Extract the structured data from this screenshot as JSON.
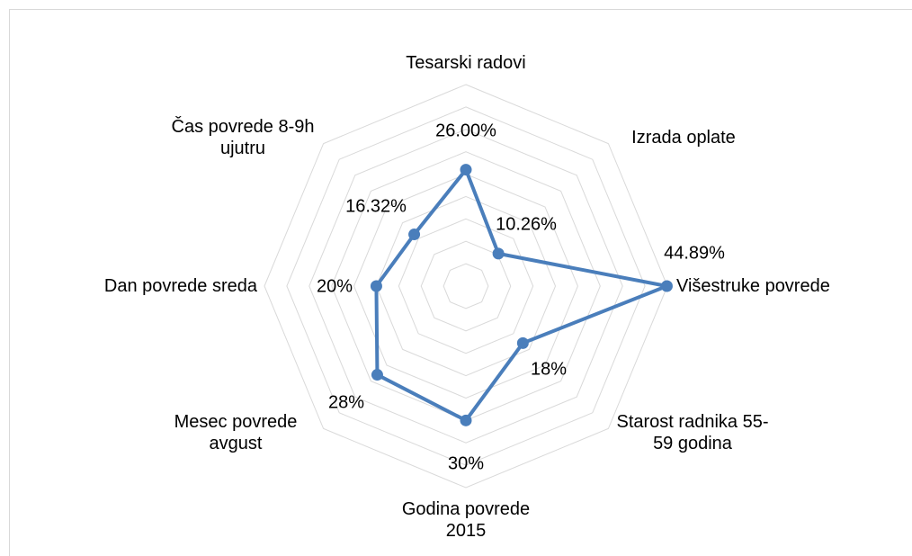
{
  "chart_data": {
    "type": "radar",
    "categories": [
      "Tesarski radovi",
      "Izrada oplate",
      "Višestruke povrede",
      "Starost radnika 55-59 godina",
      "Godina povrede 2015",
      "Mesec povrede avgust",
      "Dan povrede sreda",
      "Čas povrede 8-9h ujutru"
    ],
    "values": [
      26,
      10.26,
      44.89,
      18,
      30,
      28,
      20,
      16.32
    ],
    "value_labels": [
      "26.00%",
      "10.26%",
      "44.89%",
      "18%",
      "30%",
      "28%",
      "20%",
      "16.32%"
    ],
    "color": "#4a7ebb",
    "ylim": [
      0,
      45
    ],
    "yticks": [
      0,
      5,
      10,
      15,
      20,
      25,
      30,
      35,
      40,
      45
    ],
    "grid": true
  }
}
